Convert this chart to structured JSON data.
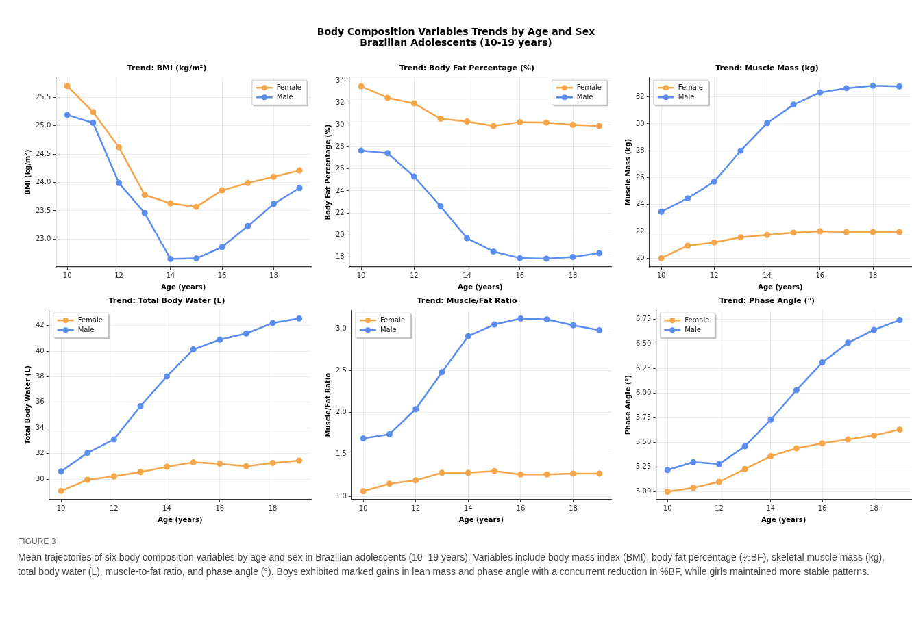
{
  "chart_data": [
    {
      "type": "other",
      "title": "Body Composition Variables Trends by Age and Sex",
      "subtitle": "Brazilian Adolescents (10-19 years)"
    },
    {
      "type": "line",
      "title": "Trend: BMI (kg/m²)",
      "xlabel": "Age (years)",
      "ylabel": "BMI (kg/m²)",
      "x": [
        10,
        11,
        12,
        13,
        14,
        15,
        16,
        17,
        18,
        19
      ],
      "xlim": [
        9.55,
        19.45
      ],
      "xticks": [
        10,
        12,
        14,
        16,
        18
      ],
      "ylim": [
        22.51,
        25.85
      ],
      "yticks": [
        {
          "value": 23,
          "label": "23.0"
        },
        23.5,
        {
          "value": 24,
          "label": "24.0"
        },
        24.5,
        {
          "value": 25,
          "label": "25.0"
        },
        25.5
      ],
      "grid": true,
      "legend": "top right",
      "marker": "circle",
      "series": [
        {
          "name": "Female",
          "color": "#f5a54a",
          "values": [
            25.7,
            25.24,
            24.62,
            23.78,
            23.63,
            23.57,
            23.86,
            23.99,
            24.1,
            24.21
          ]
        },
        {
          "name": "Male",
          "color": "#5b8def",
          "values": [
            25.19,
            25.05,
            23.99,
            23.46,
            22.65,
            22.66,
            22.86,
            23.23,
            23.62,
            23.9
          ]
        }
      ]
    },
    {
      "type": "line",
      "title": "Trend: Body Fat Percentage (%)",
      "xlabel": "Age (years)",
      "ylabel": "Body Fat Percentage (%)",
      "x": [
        10,
        11,
        12,
        13,
        14,
        15,
        16,
        17,
        18,
        19
      ],
      "xlim": [
        9.55,
        19.45
      ],
      "xticks": [
        10,
        12,
        14,
        16,
        18
      ],
      "ylim": [
        17.1,
        34.3
      ],
      "yticks": [
        18,
        20,
        22,
        24,
        26,
        28,
        30,
        32,
        34
      ],
      "grid": true,
      "legend": "top right",
      "marker": "circle",
      "series": [
        {
          "name": "Female",
          "color": "#f5a54a",
          "values": [
            33.5,
            32.45,
            31.95,
            30.55,
            30.3,
            29.9,
            30.25,
            30.2,
            30.0,
            29.9
          ]
        },
        {
          "name": "Male",
          "color": "#5b8def",
          "values": [
            27.67,
            27.43,
            25.3,
            22.6,
            19.7,
            18.5,
            17.9,
            17.85,
            18.0,
            18.35
          ]
        }
      ]
    },
    {
      "type": "line",
      "title": "Trend: Muscle Mass (kg)",
      "xlabel": "Age (years)",
      "ylabel": "Muscle Mass (kg)",
      "x": [
        10,
        11,
        12,
        13,
        14,
        15,
        16,
        17,
        18,
        19
      ],
      "xlim": [
        9.55,
        19.45
      ],
      "xticks": [
        10,
        12,
        14,
        16,
        18
      ],
      "ylim": [
        19.35,
        33.45
      ],
      "yticks": [
        20,
        22,
        24,
        26,
        28,
        30,
        32
      ],
      "grid": true,
      "legend": "top left",
      "marker": "circle",
      "series": [
        {
          "name": "Female",
          "color": "#f5a54a",
          "values": [
            20.0,
            20.93,
            21.17,
            21.55,
            21.73,
            21.9,
            22.0,
            21.95,
            21.95,
            21.95
          ]
        },
        {
          "name": "Male",
          "color": "#5b8def",
          "values": [
            23.46,
            24.46,
            25.7,
            28.0,
            30.05,
            31.43,
            32.33,
            32.65,
            32.83,
            32.78
          ]
        }
      ]
    },
    {
      "type": "line",
      "title": "Trend: Total Body Water (L)",
      "xlabel": "Age (years)",
      "ylabel": "Total Body Water (L)",
      "x": [
        10,
        11,
        12,
        13,
        14,
        15,
        16,
        17,
        18,
        19
      ],
      "xlim": [
        9.55,
        19.45
      ],
      "xticks": [
        10,
        12,
        14,
        16,
        18
      ],
      "ylim": [
        28.4,
        43.2
      ],
      "yticks": [
        30,
        32,
        34,
        36,
        38,
        40,
        42
      ],
      "grid": true,
      "legend": "top left",
      "marker": "circle",
      "series": [
        {
          "name": "Female",
          "color": "#f5a54a",
          "values": [
            29.08,
            29.95,
            30.22,
            30.55,
            30.96,
            31.31,
            31.2,
            31.01,
            31.26,
            31.45
          ]
        },
        {
          "name": "Male",
          "color": "#5b8def",
          "values": [
            30.6,
            32.05,
            33.1,
            35.7,
            38.03,
            40.13,
            40.9,
            41.38,
            42.2,
            42.55
          ]
        }
      ]
    },
    {
      "type": "line",
      "title": "Trend: Muscle/Fat Ratio",
      "xlabel": "Age (years)",
      "ylabel": "Muscle/Fat Ratio",
      "x": [
        10,
        11,
        12,
        13,
        14,
        15,
        16,
        17,
        18,
        19
      ],
      "xlim": [
        9.55,
        19.45
      ],
      "xticks": [
        10,
        12,
        14,
        16,
        18
      ],
      "ylim": [
        0.96,
        3.22
      ],
      "yticks": [
        {
          "value": 1,
          "label": "1.0"
        },
        1.5,
        {
          "value": 2,
          "label": "2.0"
        },
        2.5,
        {
          "value": 3,
          "label": "3.0"
        }
      ],
      "grid": true,
      "legend": "top left",
      "marker": "circle",
      "series": [
        {
          "name": "Female",
          "color": "#f5a54a",
          "values": [
            1.06,
            1.15,
            1.19,
            1.28,
            1.28,
            1.3,
            1.26,
            1.26,
            1.27,
            1.27
          ]
        },
        {
          "name": "Male",
          "color": "#5b8def",
          "values": [
            1.69,
            1.74,
            2.04,
            2.48,
            2.91,
            3.05,
            3.12,
            3.11,
            3.04,
            2.98
          ]
        }
      ]
    },
    {
      "type": "line",
      "title": "Trend: Phase Angle (°)",
      "xlabel": "Age (years)",
      "ylabel": "Phase Angle (°)",
      "x": [
        10,
        11,
        12,
        13,
        14,
        15,
        16,
        17,
        18,
        19
      ],
      "xlim": [
        9.55,
        19.45
      ],
      "xticks": [
        10,
        12,
        14,
        16,
        18
      ],
      "ylim": [
        4.92,
        6.84
      ],
      "yticks": [
        {
          "value": 5,
          "label": "5.00"
        },
        5.25,
        {
          "value": 5.5,
          "label": "5.50"
        },
        5.75,
        {
          "value": 6,
          "label": "6.00"
        },
        6.25,
        {
          "value": 6.5,
          "label": "6.50"
        },
        6.75
      ],
      "grid": true,
      "legend": "top left",
      "marker": "circle",
      "series": [
        {
          "name": "Female",
          "color": "#f5a54a",
          "values": [
            5.0,
            5.04,
            5.1,
            5.23,
            5.36,
            5.44,
            5.49,
            5.53,
            5.57,
            5.63
          ]
        },
        {
          "name": "Male",
          "color": "#5b8def",
          "values": [
            5.22,
            5.3,
            5.28,
            5.46,
            5.73,
            6.03,
            6.31,
            6.51,
            6.64,
            6.74
          ]
        }
      ]
    },
    {
      "type": "other",
      "title": "FIGURE 3",
      "annotations": [
        "Mean trajectories of six body composition variables by age and sex in Brazilian adolescents (10–19 years). Variables include body mass index (BMI), body fat percentage (%BF), skeletal muscle mass (kg), total body water (L), muscle-to-fat ratio, and phase angle (°). Boys exhibited marked gains in lean mass and phase angle with a concurrent reduction in %BF, while girls maintained more stable patterns."
      ]
    }
  ]
}
